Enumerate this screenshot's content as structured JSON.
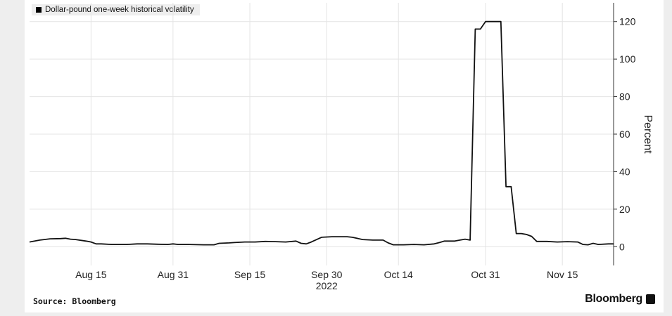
{
  "chart_data": {
    "type": "line",
    "legend": "Dollar-pound one-week historical volatility",
    "ylabel": "Percent",
    "year_label": "2022",
    "ylim": [
      -10,
      130
    ],
    "yticks": [
      0,
      20,
      40,
      60,
      80,
      100,
      120
    ],
    "xlim": [
      "2022-08-03",
      "2022-11-25"
    ],
    "xticks": [
      {
        "date": "2022-08-15",
        "label": "Aug 15"
      },
      {
        "date": "2022-08-31",
        "label": "Aug 31"
      },
      {
        "date": "2022-09-15",
        "label": "Sep 15"
      },
      {
        "date": "2022-09-30",
        "label": "Sep 30"
      },
      {
        "date": "2022-10-14",
        "label": "Oct 14"
      },
      {
        "date": "2022-10-31",
        "label": "Oct 31"
      },
      {
        "date": "2022-11-15",
        "label": "Nov 15"
      }
    ],
    "series": [
      {
        "name": "Dollar-pound one-week historical volatility",
        "color": "#111111",
        "points": [
          [
            "2022-08-03",
            2.5
          ],
          [
            "2022-08-05",
            3.5
          ],
          [
            "2022-08-07",
            4.2
          ],
          [
            "2022-08-09",
            4.3
          ],
          [
            "2022-08-10",
            4.5
          ],
          [
            "2022-08-11",
            4.0
          ],
          [
            "2022-08-12",
            3.8
          ],
          [
            "2022-08-14",
            3.0
          ],
          [
            "2022-08-15",
            2.5
          ],
          [
            "2022-08-16",
            1.5
          ],
          [
            "2022-08-17",
            1.5
          ],
          [
            "2022-08-19",
            1.2
          ],
          [
            "2022-08-22",
            1.2
          ],
          [
            "2022-08-24",
            1.5
          ],
          [
            "2022-08-26",
            1.5
          ],
          [
            "2022-08-28",
            1.3
          ],
          [
            "2022-08-30",
            1.2
          ],
          [
            "2022-08-31",
            1.5
          ],
          [
            "2022-09-01",
            1.2
          ],
          [
            "2022-09-03",
            1.2
          ],
          [
            "2022-09-06",
            1.0
          ],
          [
            "2022-09-08",
            1.0
          ],
          [
            "2022-09-09",
            1.8
          ],
          [
            "2022-09-11",
            2.0
          ],
          [
            "2022-09-12",
            2.2
          ],
          [
            "2022-09-14",
            2.5
          ],
          [
            "2022-09-16",
            2.5
          ],
          [
            "2022-09-18",
            2.8
          ],
          [
            "2022-09-20",
            2.7
          ],
          [
            "2022-09-22",
            2.5
          ],
          [
            "2022-09-24",
            3.0
          ],
          [
            "2022-09-25",
            1.8
          ],
          [
            "2022-09-26",
            1.5
          ],
          [
            "2022-09-27",
            2.5
          ],
          [
            "2022-09-29",
            5.0
          ],
          [
            "2022-10-01",
            5.3
          ],
          [
            "2022-10-04",
            5.3
          ],
          [
            "2022-10-05",
            5.0
          ],
          [
            "2022-10-07",
            3.8
          ],
          [
            "2022-10-09",
            3.5
          ],
          [
            "2022-10-11",
            3.5
          ],
          [
            "2022-10-12",
            2.0
          ],
          [
            "2022-10-13",
            1.0
          ],
          [
            "2022-10-15",
            1.0
          ],
          [
            "2022-10-17",
            1.2
          ],
          [
            "2022-10-19",
            1.0
          ],
          [
            "2022-10-21",
            1.5
          ],
          [
            "2022-10-22",
            2.2
          ],
          [
            "2022-10-23",
            3.0
          ],
          [
            "2022-10-25",
            3.0
          ],
          [
            "2022-10-26",
            3.5
          ],
          [
            "2022-10-27",
            4.0
          ],
          [
            "2022-10-28",
            3.5
          ],
          [
            "2022-10-29",
            116
          ],
          [
            "2022-10-30",
            116
          ],
          [
            "2022-10-31",
            120
          ],
          [
            "2022-11-03",
            120
          ],
          [
            "2022-11-04",
            32
          ],
          [
            "2022-11-05",
            32
          ],
          [
            "2022-11-06",
            7.0
          ],
          [
            "2022-11-07",
            7.0
          ],
          [
            "2022-11-08",
            6.5
          ],
          [
            "2022-11-09",
            5.5
          ],
          [
            "2022-11-10",
            2.8
          ],
          [
            "2022-11-12",
            2.8
          ],
          [
            "2022-11-14",
            2.5
          ],
          [
            "2022-11-16",
            2.7
          ],
          [
            "2022-11-18",
            2.5
          ],
          [
            "2022-11-19",
            1.2
          ],
          [
            "2022-11-20",
            1.0
          ],
          [
            "2022-11-21",
            1.8
          ],
          [
            "2022-11-22",
            1.2
          ],
          [
            "2022-11-24",
            1.5
          ],
          [
            "2022-11-25",
            1.5
          ]
        ]
      }
    ],
    "grid": true,
    "legend_position": "top-left"
  },
  "footer": {
    "source": "Source: Bloomberg",
    "brand": "Bloomberg"
  }
}
